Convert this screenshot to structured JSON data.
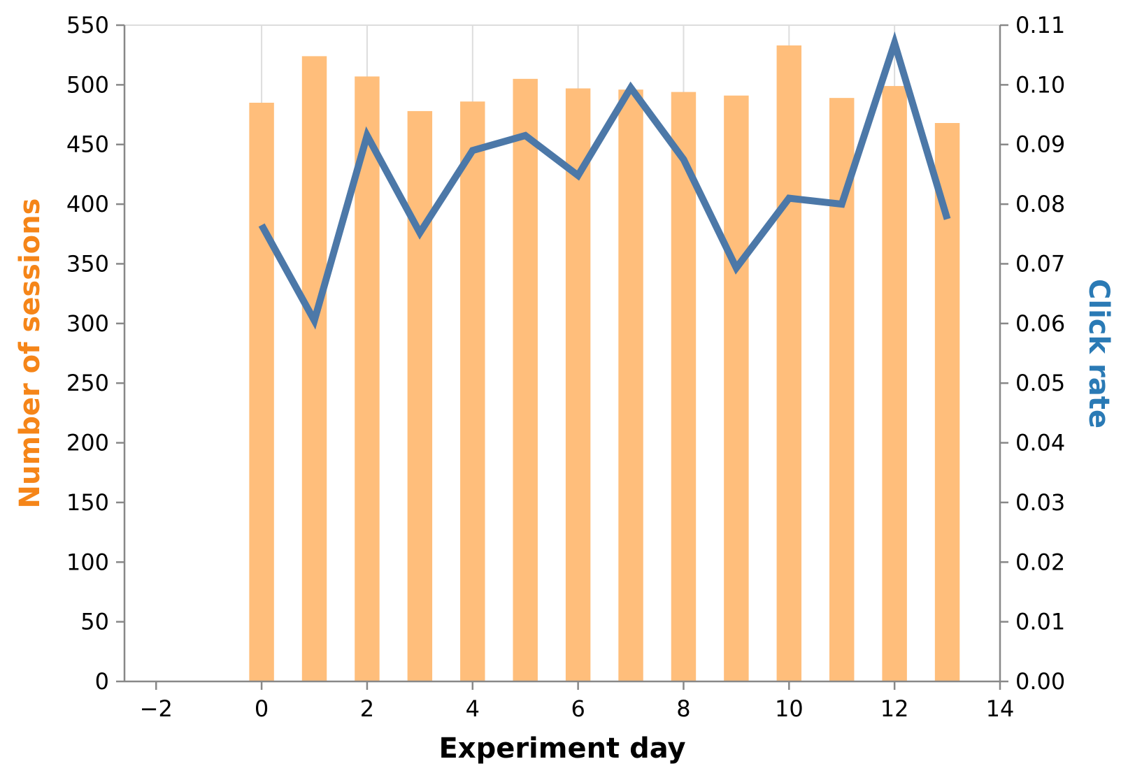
{
  "chart_data": {
    "type": "bar+line",
    "title": "",
    "xlabel": "Experiment day",
    "ylabel_left": "Number of sessions",
    "ylabel_right": "Click rate",
    "xlim": [
      -2.6,
      14
    ],
    "ylim_left": [
      0,
      550
    ],
    "ylim_right": [
      0,
      0.11
    ],
    "x_ticks": [
      -2,
      0,
      2,
      4,
      6,
      8,
      10,
      12,
      14
    ],
    "x_tick_labels": [
      "−2",
      "0",
      "2",
      "4",
      "6",
      "8",
      "10",
      "12",
      "14"
    ],
    "y_left_ticks": [
      0,
      50,
      100,
      150,
      200,
      250,
      300,
      350,
      400,
      450,
      500,
      550
    ],
    "y_left_tick_labels": [
      "0",
      "50",
      "100",
      "150",
      "200",
      "250",
      "300",
      "350",
      "400",
      "450",
      "500",
      "550"
    ],
    "y_right_ticks": [
      0,
      0.01,
      0.02,
      0.03,
      0.04,
      0.05,
      0.06,
      0.07,
      0.08,
      0.09,
      0.1,
      0.11
    ],
    "y_right_tick_labels": [
      "0.00",
      "0.01",
      "0.02",
      "0.03",
      "0.04",
      "0.05",
      "0.06",
      "0.07",
      "0.08",
      "0.09",
      "0.10",
      "0.11"
    ],
    "grid": "vertical",
    "x": [
      0,
      1,
      2,
      3,
      4,
      5,
      6,
      7,
      8,
      9,
      10,
      11,
      12,
      13
    ],
    "series": [
      {
        "type": "bar",
        "axis": "left",
        "color": "#ffbe7b",
        "values": [
          485,
          524,
          507,
          478,
          486,
          505,
          497,
          496,
          494,
          491,
          533,
          489,
          499,
          468
        ]
      },
      {
        "type": "line",
        "axis": "right",
        "color": "#4c78a8",
        "values": [
          0.0765,
          0.0605,
          0.0915,
          0.0752,
          0.089,
          0.0915,
          0.0848,
          0.0995,
          0.0875,
          0.0693,
          0.081,
          0.08,
          0.107,
          0.0775
        ]
      }
    ],
    "colors": {
      "left_title": "#f58518",
      "right_title": "#2a7ab5",
      "axis": "#888888",
      "grid": "#dddddd"
    }
  }
}
